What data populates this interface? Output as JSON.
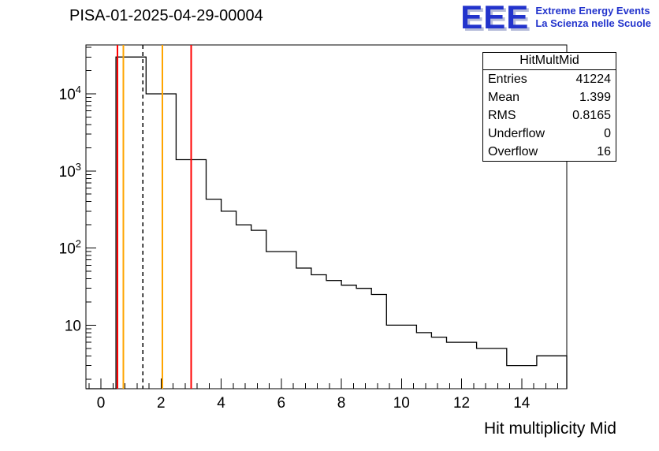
{
  "page": {
    "title": "PISA-01-2025-04-29-00004"
  },
  "logo": {
    "text": "EEE",
    "line1": "Extreme Energy Events",
    "line2": "La Scienza nelle Scuole",
    "color": "#2233cc"
  },
  "stats": {
    "header": "HitMultMid",
    "rows": [
      [
        "Entries",
        "41224"
      ],
      [
        "Mean",
        "1.399"
      ],
      [
        "RMS",
        "0.8165"
      ],
      [
        "Underflow",
        "0"
      ],
      [
        "Overflow",
        "16"
      ]
    ]
  },
  "chart_data": {
    "type": "bar",
    "title": "PISA-01-2025-04-29-00004",
    "xlabel": "Hit multiplicity Mid",
    "ylabel": "",
    "y_scale": "log",
    "x_range": [
      -0.5,
      15.5
    ],
    "y_range": [
      1.5,
      43000
    ],
    "x_ticks": [
      0,
      2,
      4,
      6,
      8,
      10,
      12,
      14
    ],
    "y_ticks": [
      10,
      100,
      1000,
      10000
    ],
    "grid": false,
    "legend": false,
    "bins": [
      [
        -0.5,
        0.5,
        0
      ],
      [
        0.5,
        1.5,
        30000
      ],
      [
        1.5,
        2.5,
        10000
      ],
      [
        2.5,
        3.5,
        1400
      ],
      [
        3.5,
        4.0,
        430
      ],
      [
        4.0,
        4.5,
        300
      ],
      [
        4.5,
        5.0,
        200
      ],
      [
        5.0,
        5.5,
        170
      ],
      [
        5.5,
        6.5,
        90
      ],
      [
        6.5,
        7.0,
        55
      ],
      [
        7.0,
        7.5,
        45
      ],
      [
        7.5,
        8.0,
        38
      ],
      [
        8.0,
        8.5,
        33
      ],
      [
        8.5,
        9.0,
        30
      ],
      [
        9.0,
        9.5,
        25
      ],
      [
        9.5,
        10.5,
        10
      ],
      [
        10.5,
        11.0,
        8
      ],
      [
        11.0,
        11.5,
        7
      ],
      [
        11.5,
        12.5,
        6
      ],
      [
        12.5,
        13.5,
        5
      ],
      [
        13.5,
        14.5,
        3
      ],
      [
        14.5,
        15.5,
        4
      ]
    ],
    "marker_lines": [
      {
        "x": 0.55,
        "color": "#ff0000",
        "style": "solid",
        "name": "red-cut-line-left"
      },
      {
        "x": 0.75,
        "color": "#ffa500",
        "style": "solid",
        "name": "orange-cut-line-left"
      },
      {
        "x": 1.4,
        "color": "#000000",
        "style": "dashed",
        "name": "mean-dashed-line"
      },
      {
        "x": 2.05,
        "color": "#ffa500",
        "style": "solid",
        "name": "orange-cut-line-right"
      },
      {
        "x": 3.0,
        "color": "#ff0000",
        "style": "solid",
        "name": "red-cut-line-right"
      }
    ]
  }
}
